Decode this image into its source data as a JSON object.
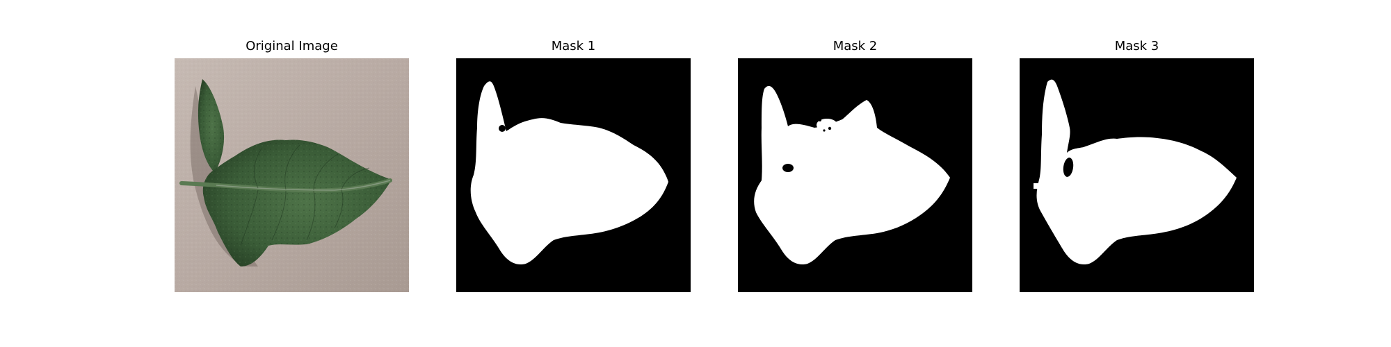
{
  "figure": {
    "panels": [
      {
        "title": "Original Image",
        "kind": "photo"
      },
      {
        "title": "Mask 1",
        "kind": "mask"
      },
      {
        "title": "Mask 2",
        "kind": "mask"
      },
      {
        "title": "Mask 3",
        "kind": "mask"
      }
    ]
  },
  "colors": {
    "background": "#ffffff",
    "mask_background": "#000000",
    "mask_foreground": "#ffffff",
    "paper": "#b8aaa3",
    "leaf_dark": "#2f4f2e",
    "leaf_mid": "#4c6f45",
    "leaf_vein": "#8fa08a"
  }
}
